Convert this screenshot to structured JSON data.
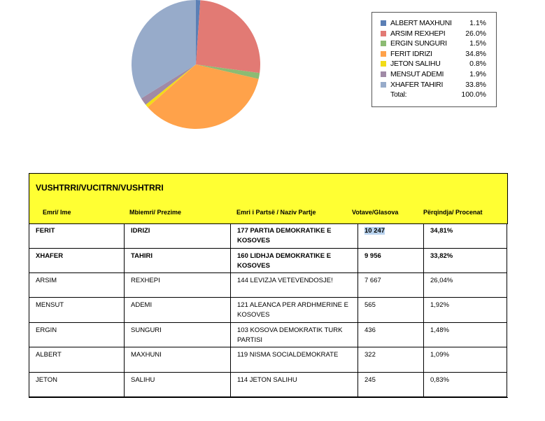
{
  "chart_data": {
    "type": "pie",
    "series": [
      {
        "name": "ALBERT MAXHUNI",
        "value": 1.1,
        "color": "#5b7fb5"
      },
      {
        "name": "ARSIM REXHEPI",
        "value": 26.0,
        "color": "#e27a74"
      },
      {
        "name": "ERGIN SUNGURI",
        "value": 1.5,
        "color": "#8cbb73"
      },
      {
        "name": "FERIT IDRIZI",
        "value": 34.8,
        "color": "#ffa24a"
      },
      {
        "name": "JETON SALIHU",
        "value": 0.8,
        "color": "#f2dc17"
      },
      {
        "name": "MENSUT ADEMI",
        "value": 1.9,
        "color": "#a08aa6"
      },
      {
        "name": "XHAFER TAHIRI",
        "value": 33.8,
        "color": "#97abca"
      }
    ],
    "legend_labels": [
      {
        "name": "ALBERT MAXHUNI",
        "pct": "1.1%"
      },
      {
        "name": "ARSIM REXHEPI",
        "pct": "26.0%"
      },
      {
        "name": "ERGIN SUNGURI",
        "pct": "1.5%"
      },
      {
        "name": "FERIT IDRIZI",
        "pct": "34.8%"
      },
      {
        "name": "JETON SALIHU",
        "pct": "0.8%"
      },
      {
        "name": "MENSUT ADEMI",
        "pct": "1.9%"
      },
      {
        "name": "XHAFER TAHIRI",
        "pct": "33.8%"
      }
    ],
    "total_label": "Total:",
    "total_value": "100.0%",
    "legend_position": "right"
  },
  "table": {
    "title": "VUSHTRRI/VUCITRN/VUSHTRRI",
    "headers": [
      "Emri/ Ime",
      "Mbiemri/ Prezime",
      "Emri i Partsë / Naziv Partje",
      "Votave/Glasova",
      "Përqindja/ Procenat"
    ],
    "rows": [
      {
        "first": "FERIT",
        "last": "IDRIZI",
        "party": "177 PARTIA DEMOKRATIKE E KOSOVES",
        "votes": "10 247",
        "pct": "34,81%"
      },
      {
        "first": "XHAFER",
        "last": "TAHIRI",
        "party": "160 LIDHJA DEMOKRATIKE E KOSOVES",
        "votes": "9 956",
        "pct": "33,82%"
      },
      {
        "first": "ARSIM",
        "last": "REXHEPI",
        "party": "144 LEVIZJA VETEVENDOSJE!",
        "votes": "7 667",
        "pct": "26,04%"
      },
      {
        "first": "MENSUT",
        "last": "ADEMI",
        "party": "121 ALEANCA PER ARDHMERINE E KOSOVES",
        "votes": "565",
        "pct": "1,92%"
      },
      {
        "first": "ERGIN",
        "last": "SUNGURI",
        "party": "103 KOSOVA DEMOKRATIK TURK PARTISI",
        "votes": "436",
        "pct": "1,48%"
      },
      {
        "first": "ALBERT",
        "last": "MAXHUNI",
        "party": "119 NISMA SOCIALDEMOKRATE",
        "votes": "322",
        "pct": "1,09%"
      },
      {
        "first": "JETON",
        "last": "SALIHU",
        "party": "114 JETON SALIHU",
        "votes": "245",
        "pct": "0,83%"
      }
    ]
  }
}
